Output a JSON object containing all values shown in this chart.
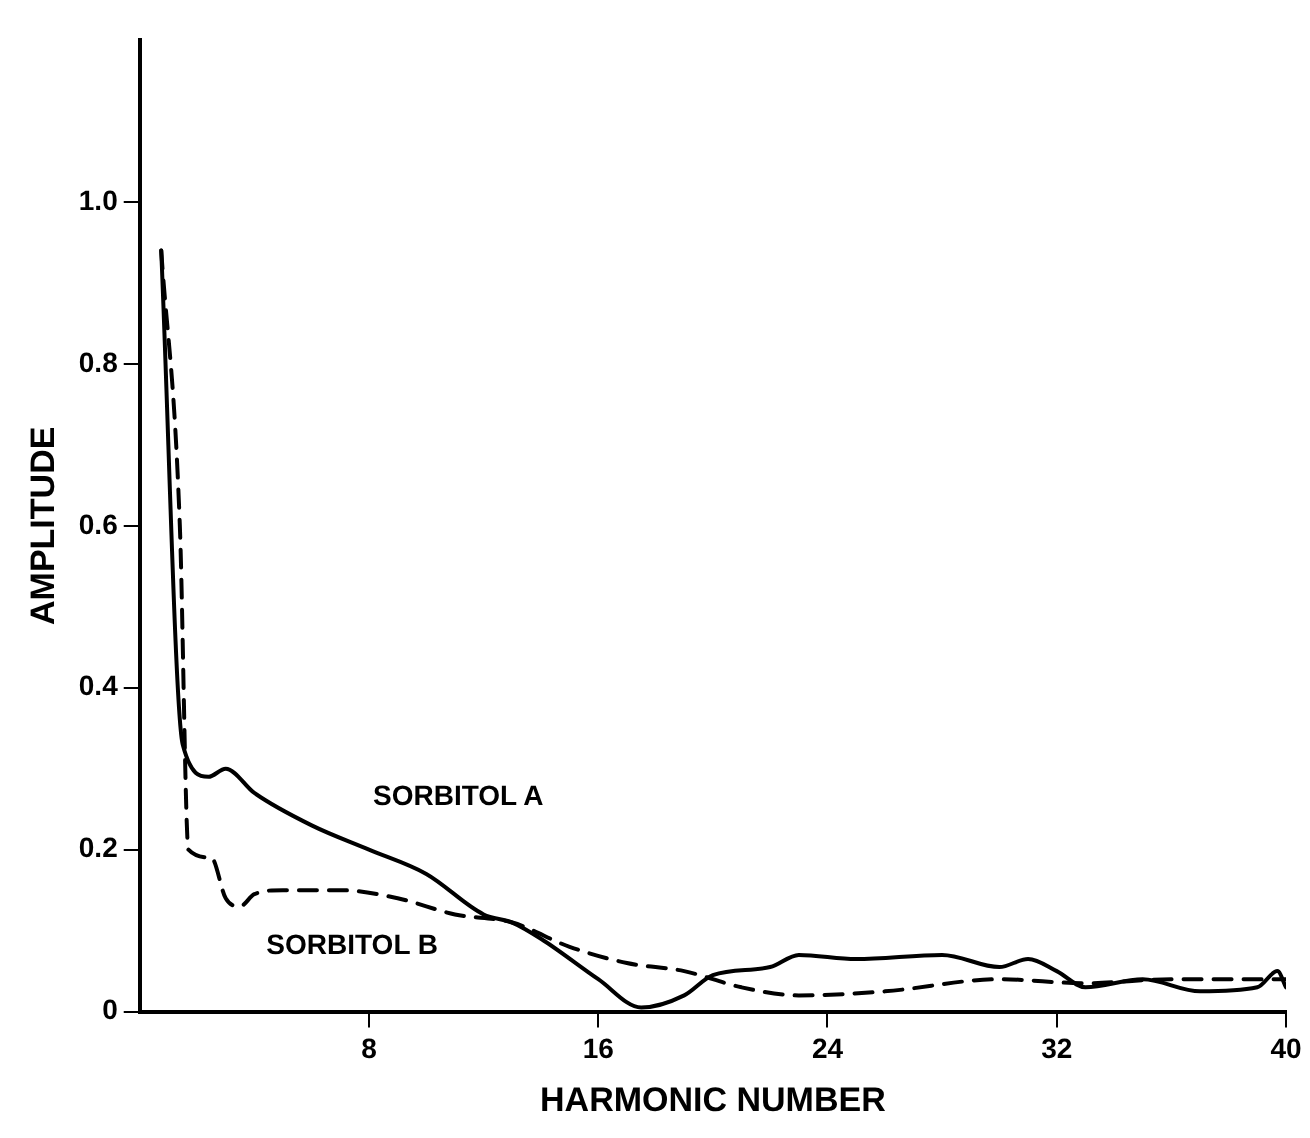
{
  "chart_data": {
    "type": "line",
    "xlabel": "HARMONIC NUMBER",
    "ylabel": "AMPLITUDE",
    "xlim": [
      0,
      40
    ],
    "ylim": [
      0,
      1.2
    ],
    "xticks": [
      8,
      16,
      24,
      32,
      40
    ],
    "yticks": [
      0,
      {
        "value": 0.2,
        "label": "0.2"
      },
      {
        "value": 0.4,
        "label": "0.4"
      },
      {
        "value": 0.6,
        "label": "0.6"
      },
      {
        "value": 0.8,
        "label": "0.8"
      },
      {
        "value": 1,
        "label": "1.0"
      }
    ],
    "grid": false,
    "legend": false,
    "marker": "none",
    "series": [
      {
        "name": "SORBITOL A",
        "color": "#000000",
        "line_style": "solid",
        "x": [
          0.75,
          1.5,
          2.4,
          3,
          4,
          6,
          8,
          10,
          12,
          13,
          14,
          16,
          17.5,
          19,
          20,
          22,
          23,
          25,
          28,
          30,
          31,
          32,
          33,
          35,
          37,
          39,
          39.7,
          40
        ],
        "values": [
          0.94,
          0.33,
          0.29,
          0.3,
          0.27,
          0.23,
          0.2,
          0.17,
          0.12,
          0.11,
          0.09,
          0.04,
          0.005,
          0.02,
          0.045,
          0.055,
          0.07,
          0.065,
          0.07,
          0.055,
          0.065,
          0.05,
          0.03,
          0.04,
          0.025,
          0.03,
          0.05,
          0.03
        ]
      },
      {
        "name": "SORBITOL B",
        "color": "#000000",
        "line_style": "dashed",
        "x": [
          0.75,
          1.4,
          1.7,
          2.5,
          3,
          3.5,
          4,
          5,
          7,
          9,
          11,
          13,
          15,
          17,
          19,
          21,
          23,
          26,
          30,
          33,
          36,
          40
        ],
        "values": [
          0.94,
          0.6,
          0.2,
          0.19,
          0.14,
          0.13,
          0.145,
          0.15,
          0.15,
          0.14,
          0.12,
          0.11,
          0.08,
          0.06,
          0.05,
          0.03,
          0.02,
          0.025,
          0.04,
          0.035,
          0.04,
          0.04
        ]
      }
    ]
  }
}
